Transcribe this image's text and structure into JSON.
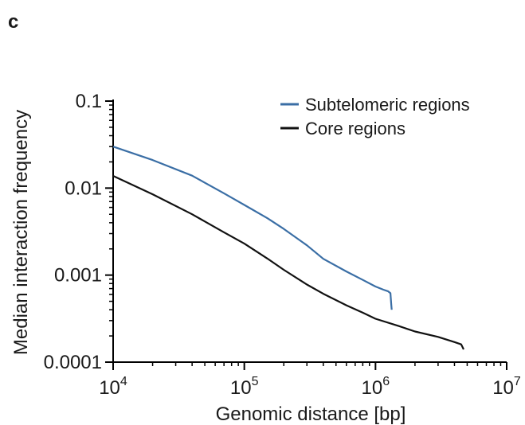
{
  "panel_label": "c",
  "chart_data": {
    "type": "line",
    "title": "",
    "xlabel": "Genomic distance [bp]",
    "ylabel": "Median interaction frequency",
    "x_scale": "log",
    "y_scale": "log",
    "xlim": [
      10000,
      10000000
    ],
    "ylim": [
      0.0001,
      0.1
    ],
    "x_ticks": [
      {
        "value": 10000,
        "base": "10",
        "exp": "4"
      },
      {
        "value": 100000,
        "base": "10",
        "exp": "5"
      },
      {
        "value": 1000000,
        "base": "10",
        "exp": "6"
      },
      {
        "value": 10000000,
        "base": "10",
        "exp": "7"
      }
    ],
    "y_ticks": [
      {
        "value": 0.1,
        "label": "0.1"
      },
      {
        "value": 0.01,
        "label": "0.01"
      },
      {
        "value": 0.001,
        "label": "0.001"
      },
      {
        "value": 0.0001,
        "label": "0.0001"
      }
    ],
    "grid": false,
    "legend_position": "top-right",
    "series": [
      {
        "name": "Subtelomeric regions",
        "color": "#3a6ea5",
        "x": [
          10000,
          20000,
          40000,
          70000,
          100000,
          150000,
          200000,
          300000,
          400000,
          600000,
          800000,
          1000000,
          1150000,
          1250000,
          1300000,
          1320000,
          1330000
        ],
        "y": [
          0.03,
          0.021,
          0.0139,
          0.0087,
          0.0064,
          0.0045,
          0.0034,
          0.0022,
          0.00154,
          0.0011,
          0.00088,
          0.00074,
          0.00068,
          0.00065,
          0.00062,
          0.00045,
          0.0004
        ]
      },
      {
        "name": "Core regions",
        "color": "#111111",
        "x": [
          10000,
          20000,
          40000,
          70000,
          100000,
          150000,
          200000,
          300000,
          400000,
          600000,
          800000,
          1000000,
          1500000,
          2000000,
          3000000,
          4000000,
          4500000,
          4700000
        ],
        "y": [
          0.0138,
          0.0085,
          0.005,
          0.0031,
          0.0023,
          0.00155,
          0.00115,
          0.00078,
          0.00061,
          0.00045,
          0.00037,
          0.000315,
          0.00026,
          0.000225,
          0.000195,
          0.00017,
          0.00016,
          0.00014
        ]
      }
    ]
  }
}
